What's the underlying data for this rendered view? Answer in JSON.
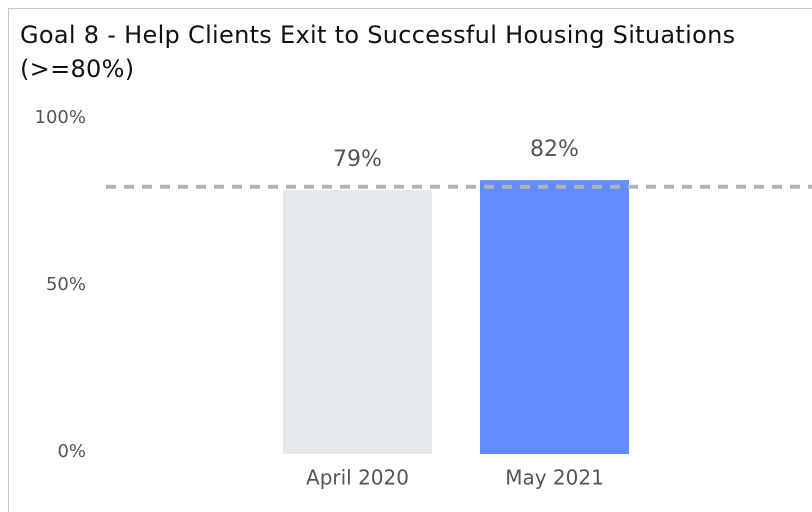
{
  "chart_data": {
    "type": "bar",
    "title": "Goal 8 - Help Clients Exit to Successful Housing Situations (>=80%)",
    "categories": [
      "April 2020",
      "May 2021"
    ],
    "values": [
      79,
      82
    ],
    "value_labels": [
      "79%",
      "82%"
    ],
    "colors": [
      "#e5e9ec",
      "#628dff"
    ],
    "target": 80,
    "ylim": [
      0,
      100
    ],
    "yticks": [
      {
        "value": 0,
        "label": "0%"
      },
      {
        "value": 50,
        "label": "50%"
      },
      {
        "value": 100,
        "label": "100%"
      }
    ],
    "grid": false
  }
}
